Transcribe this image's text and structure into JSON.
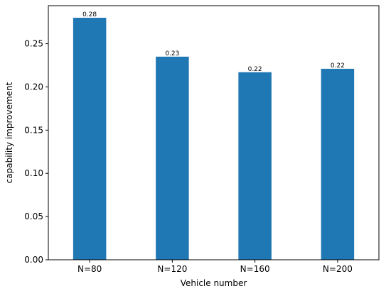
{
  "chart_data": {
    "type": "bar",
    "categories": [
      "N=80",
      "N=120",
      "N=160",
      "N=200"
    ],
    "values": [
      0.28,
      0.235,
      0.217,
      0.221
    ],
    "data_labels": [
      "0.28",
      "0.23",
      "0.22",
      "0.22"
    ],
    "title": "",
    "xlabel": "Vehicle number",
    "ylabel": "capability improvement",
    "ylim": [
      0,
      0.294
    ],
    "yticks": [
      0.0,
      0.05,
      0.1,
      0.15,
      0.2,
      0.25
    ],
    "ytick_labels": [
      "0.00",
      "0.05",
      "0.10",
      "0.15",
      "0.20",
      "0.25"
    ],
    "grid": false,
    "legend": "none",
    "bar_color": "#1f77b4"
  }
}
